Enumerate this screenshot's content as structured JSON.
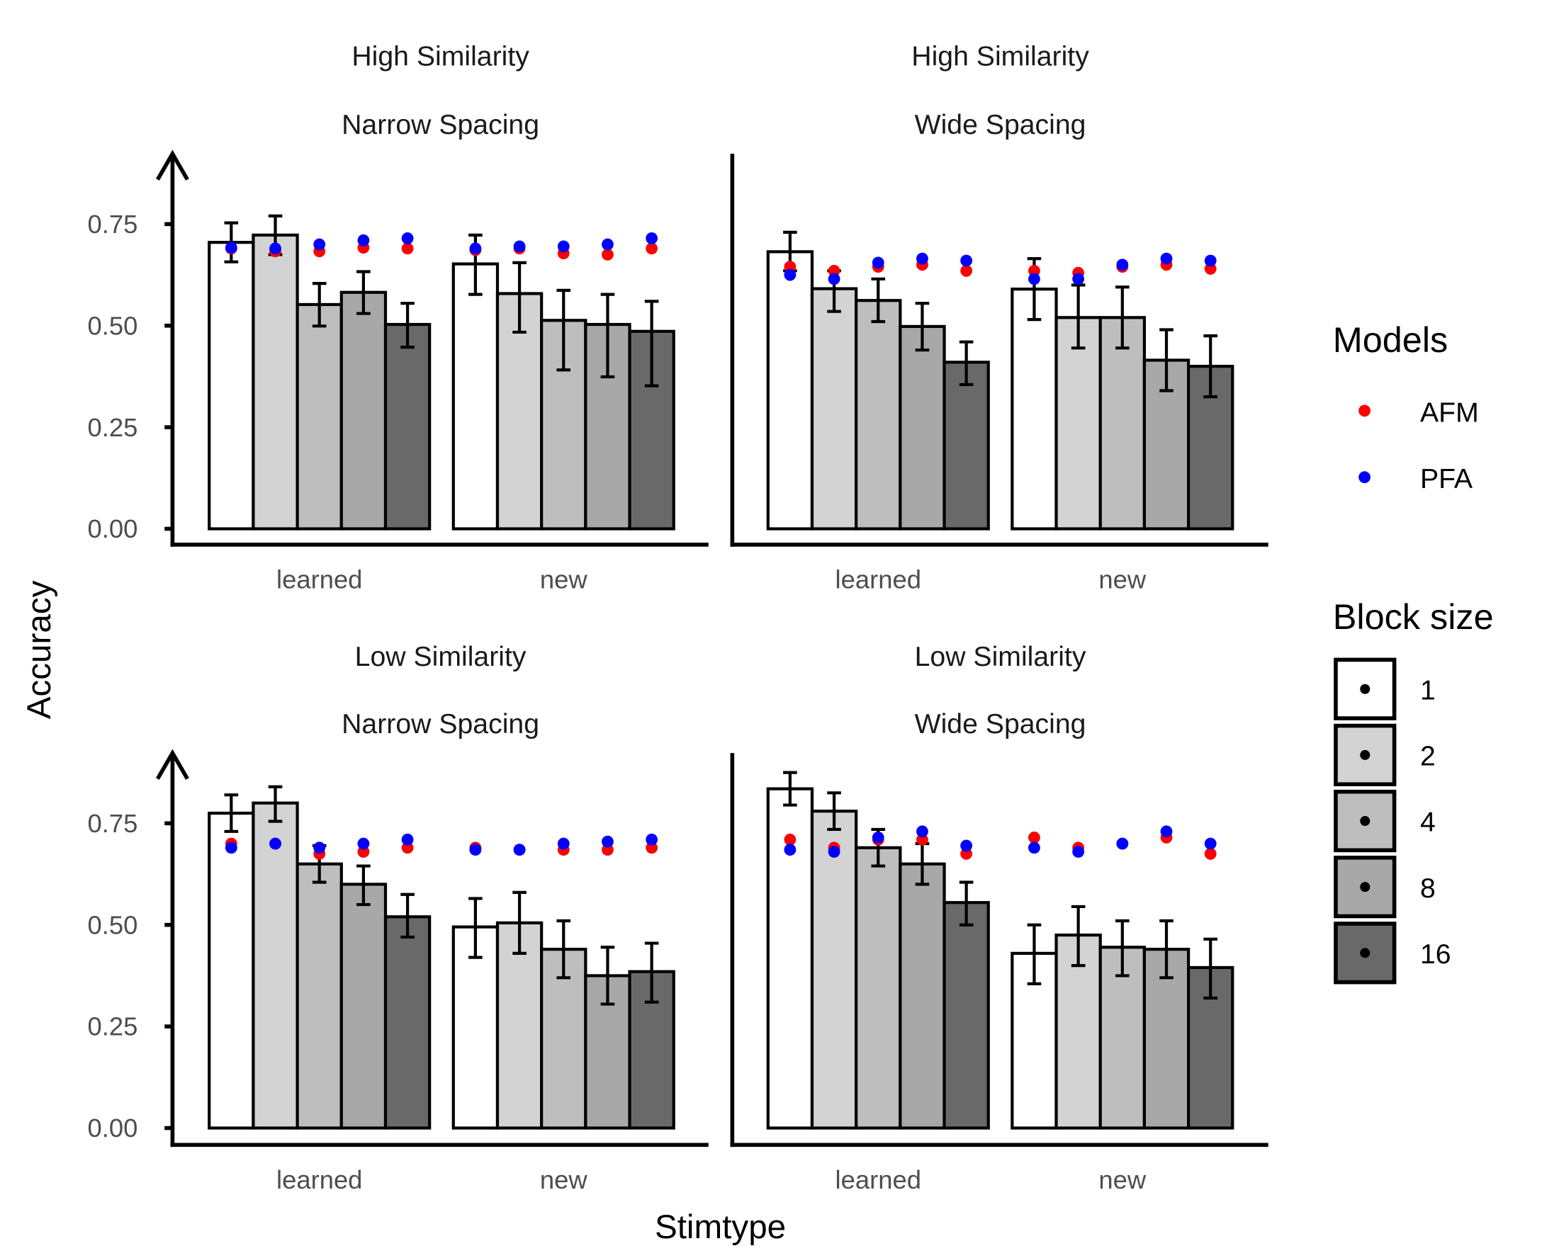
{
  "chart_data": {
    "type": "bar",
    "xlabel": "Stimtype",
    "ylabel": "Accuracy",
    "ylim": [
      0,
      0.85
    ],
    "yticks": [
      "0.00",
      "0.25",
      "0.50",
      "0.75"
    ],
    "categories": [
      "learned",
      "new"
    ],
    "fill_legend": {
      "title": "Block size",
      "levels": [
        "1",
        "2",
        "4",
        "8",
        "16"
      ],
      "colors": [
        "#ffffff",
        "#d3d3d3",
        "#bebebe",
        "#a8a8a8",
        "#696969"
      ]
    },
    "point_legend": {
      "title": "Models",
      "series": [
        {
          "name": "AFM",
          "color": "#ff0000"
        },
        {
          "name": "PFA",
          "color": "#0000ff"
        }
      ]
    },
    "grid": false,
    "legend_position": "right",
    "panels": [
      {
        "strip": [
          "High Similarity",
          "Narrow Spacing"
        ],
        "groups": [
          {
            "stimtype": "learned",
            "bars": [
              0.705,
              0.723,
              0.552,
              0.582,
              0.503
            ],
            "err_low": [
              0.657,
              0.675,
              0.499,
              0.53,
              0.447
            ],
            "err_high": [
              0.753,
              0.77,
              0.604,
              0.633,
              0.555
            ],
            "AFM": [
              0.69,
              0.683,
              0.683,
              0.692,
              0.69
            ],
            "PFA": [
              0.692,
              0.69,
              0.7,
              0.71,
              0.715
            ]
          },
          {
            "stimtype": "new",
            "bars": [
              0.652,
              0.579,
              0.513,
              0.503,
              0.486
            ],
            "err_low": [
              0.577,
              0.484,
              0.391,
              0.374,
              0.352
            ],
            "err_high": [
              0.723,
              0.655,
              0.587,
              0.577,
              0.56
            ],
            "AFM": [
              0.686,
              0.69,
              0.678,
              0.675,
              0.69
            ],
            "PFA": [
              0.69,
              0.695,
              0.695,
              0.7,
              0.715
            ]
          }
        ]
      },
      {
        "strip": [
          "High Similarity",
          "Wide Spacing"
        ],
        "groups": [
          {
            "stimtype": "learned",
            "bars": [
              0.682,
              0.591,
              0.562,
              0.498,
              0.41
            ],
            "err_low": [
              0.635,
              0.535,
              0.51,
              0.44,
              0.355
            ],
            "err_high": [
              0.73,
              0.635,
              0.615,
              0.555,
              0.46
            ],
            "AFM": [
              0.645,
              0.635,
              0.645,
              0.65,
              0.635
            ],
            "PFA": [
              0.625,
              0.615,
              0.655,
              0.665,
              0.66
            ]
          },
          {
            "stimtype": "new",
            "bars": [
              0.59,
              0.52,
              0.52,
              0.415,
              0.4
            ],
            "err_low": [
              0.515,
              0.445,
              0.445,
              0.34,
              0.325
            ],
            "err_high": [
              0.665,
              0.6,
              0.595,
              0.49,
              0.475
            ],
            "AFM": [
              0.635,
              0.63,
              0.645,
              0.65,
              0.64
            ],
            "PFA": [
              0.615,
              0.615,
              0.65,
              0.665,
              0.66
            ]
          }
        ]
      },
      {
        "strip": [
          "Low Similarity",
          "Narrow Spacing"
        ],
        "groups": [
          {
            "stimtype": "learned",
            "bars": [
              0.775,
              0.8,
              0.65,
              0.6,
              0.52
            ],
            "err_low": [
              0.73,
              0.755,
              0.605,
              0.55,
              0.47
            ],
            "err_high": [
              0.82,
              0.84,
              0.695,
              0.645,
              0.575
            ],
            "AFM": [
              0.7,
              0.7,
              0.675,
              0.68,
              0.69
            ],
            "PFA": [
              0.69,
              0.7,
              0.69,
              0.7,
              0.71
            ]
          },
          {
            "stimtype": "new",
            "bars": [
              0.495,
              0.505,
              0.44,
              0.375,
              0.385
            ],
            "err_low": [
              0.42,
              0.43,
              0.37,
              0.305,
              0.31
            ],
            "err_high": [
              0.565,
              0.58,
              0.51,
              0.445,
              0.455
            ],
            "AFM": [
              0.69,
              0.685,
              0.685,
              0.685,
              0.69
            ],
            "PFA": [
              0.685,
              0.685,
              0.7,
              0.705,
              0.71
            ]
          }
        ]
      },
      {
        "strip": [
          "Low Similarity",
          "Wide Spacing"
        ],
        "groups": [
          {
            "stimtype": "learned",
            "bars": [
              0.835,
              0.78,
              0.69,
              0.65,
              0.555
            ],
            "err_low": [
              0.795,
              0.735,
              0.645,
              0.6,
              0.5
            ],
            "err_high": [
              0.875,
              0.825,
              0.735,
              0.7,
              0.605
            ],
            "AFM": [
              0.71,
              0.69,
              0.71,
              0.71,
              0.675
            ],
            "PFA": [
              0.685,
              0.68,
              0.715,
              0.73,
              0.695
            ]
          },
          {
            "stimtype": "new",
            "bars": [
              0.43,
              0.475,
              0.445,
              0.44,
              0.395
            ],
            "err_low": [
              0.355,
              0.4,
              0.375,
              0.37,
              0.32
            ],
            "err_high": [
              0.5,
              0.545,
              0.51,
              0.51,
              0.465
            ],
            "AFM": [
              0.715,
              0.69,
              0.7,
              0.715,
              0.675
            ],
            "PFA": [
              0.69,
              0.68,
              0.7,
              0.73,
              0.7
            ]
          }
        ]
      }
    ]
  }
}
